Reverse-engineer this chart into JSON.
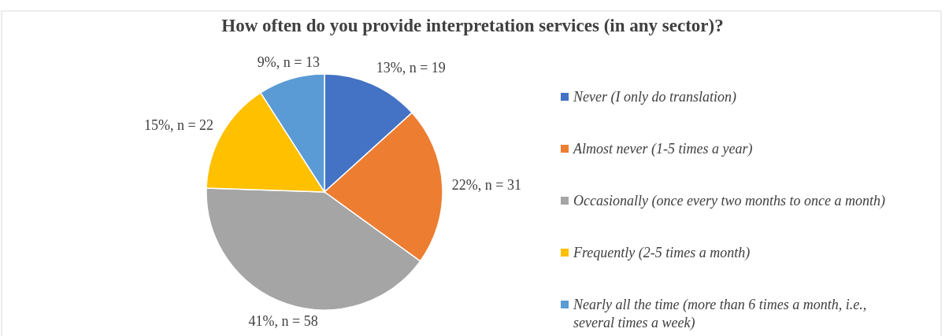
{
  "chart_data": {
    "type": "pie",
    "title": "How often do you provide interpretation services (in any sector)?",
    "categories": [
      "Never (I only do translation)",
      "Almost never (1-5 times a year)",
      "Occasionally (once every two months to once a month)",
      "Frequently (2-5 times a month)",
      "Nearly all the time (more than 6 times a month, i.e., several times a week)"
    ],
    "values": [
      19,
      31,
      58,
      22,
      13
    ],
    "colors": [
      "#4472c4",
      "#ed7d31",
      "#a5a5a5",
      "#ffc000",
      "#5b9bd5"
    ],
    "value_labels": [
      "13%, n = 19",
      "22%, n = 31",
      "41%, n = 58",
      "15%, n = 22",
      "9%, n = 13"
    ],
    "legend": "right"
  }
}
